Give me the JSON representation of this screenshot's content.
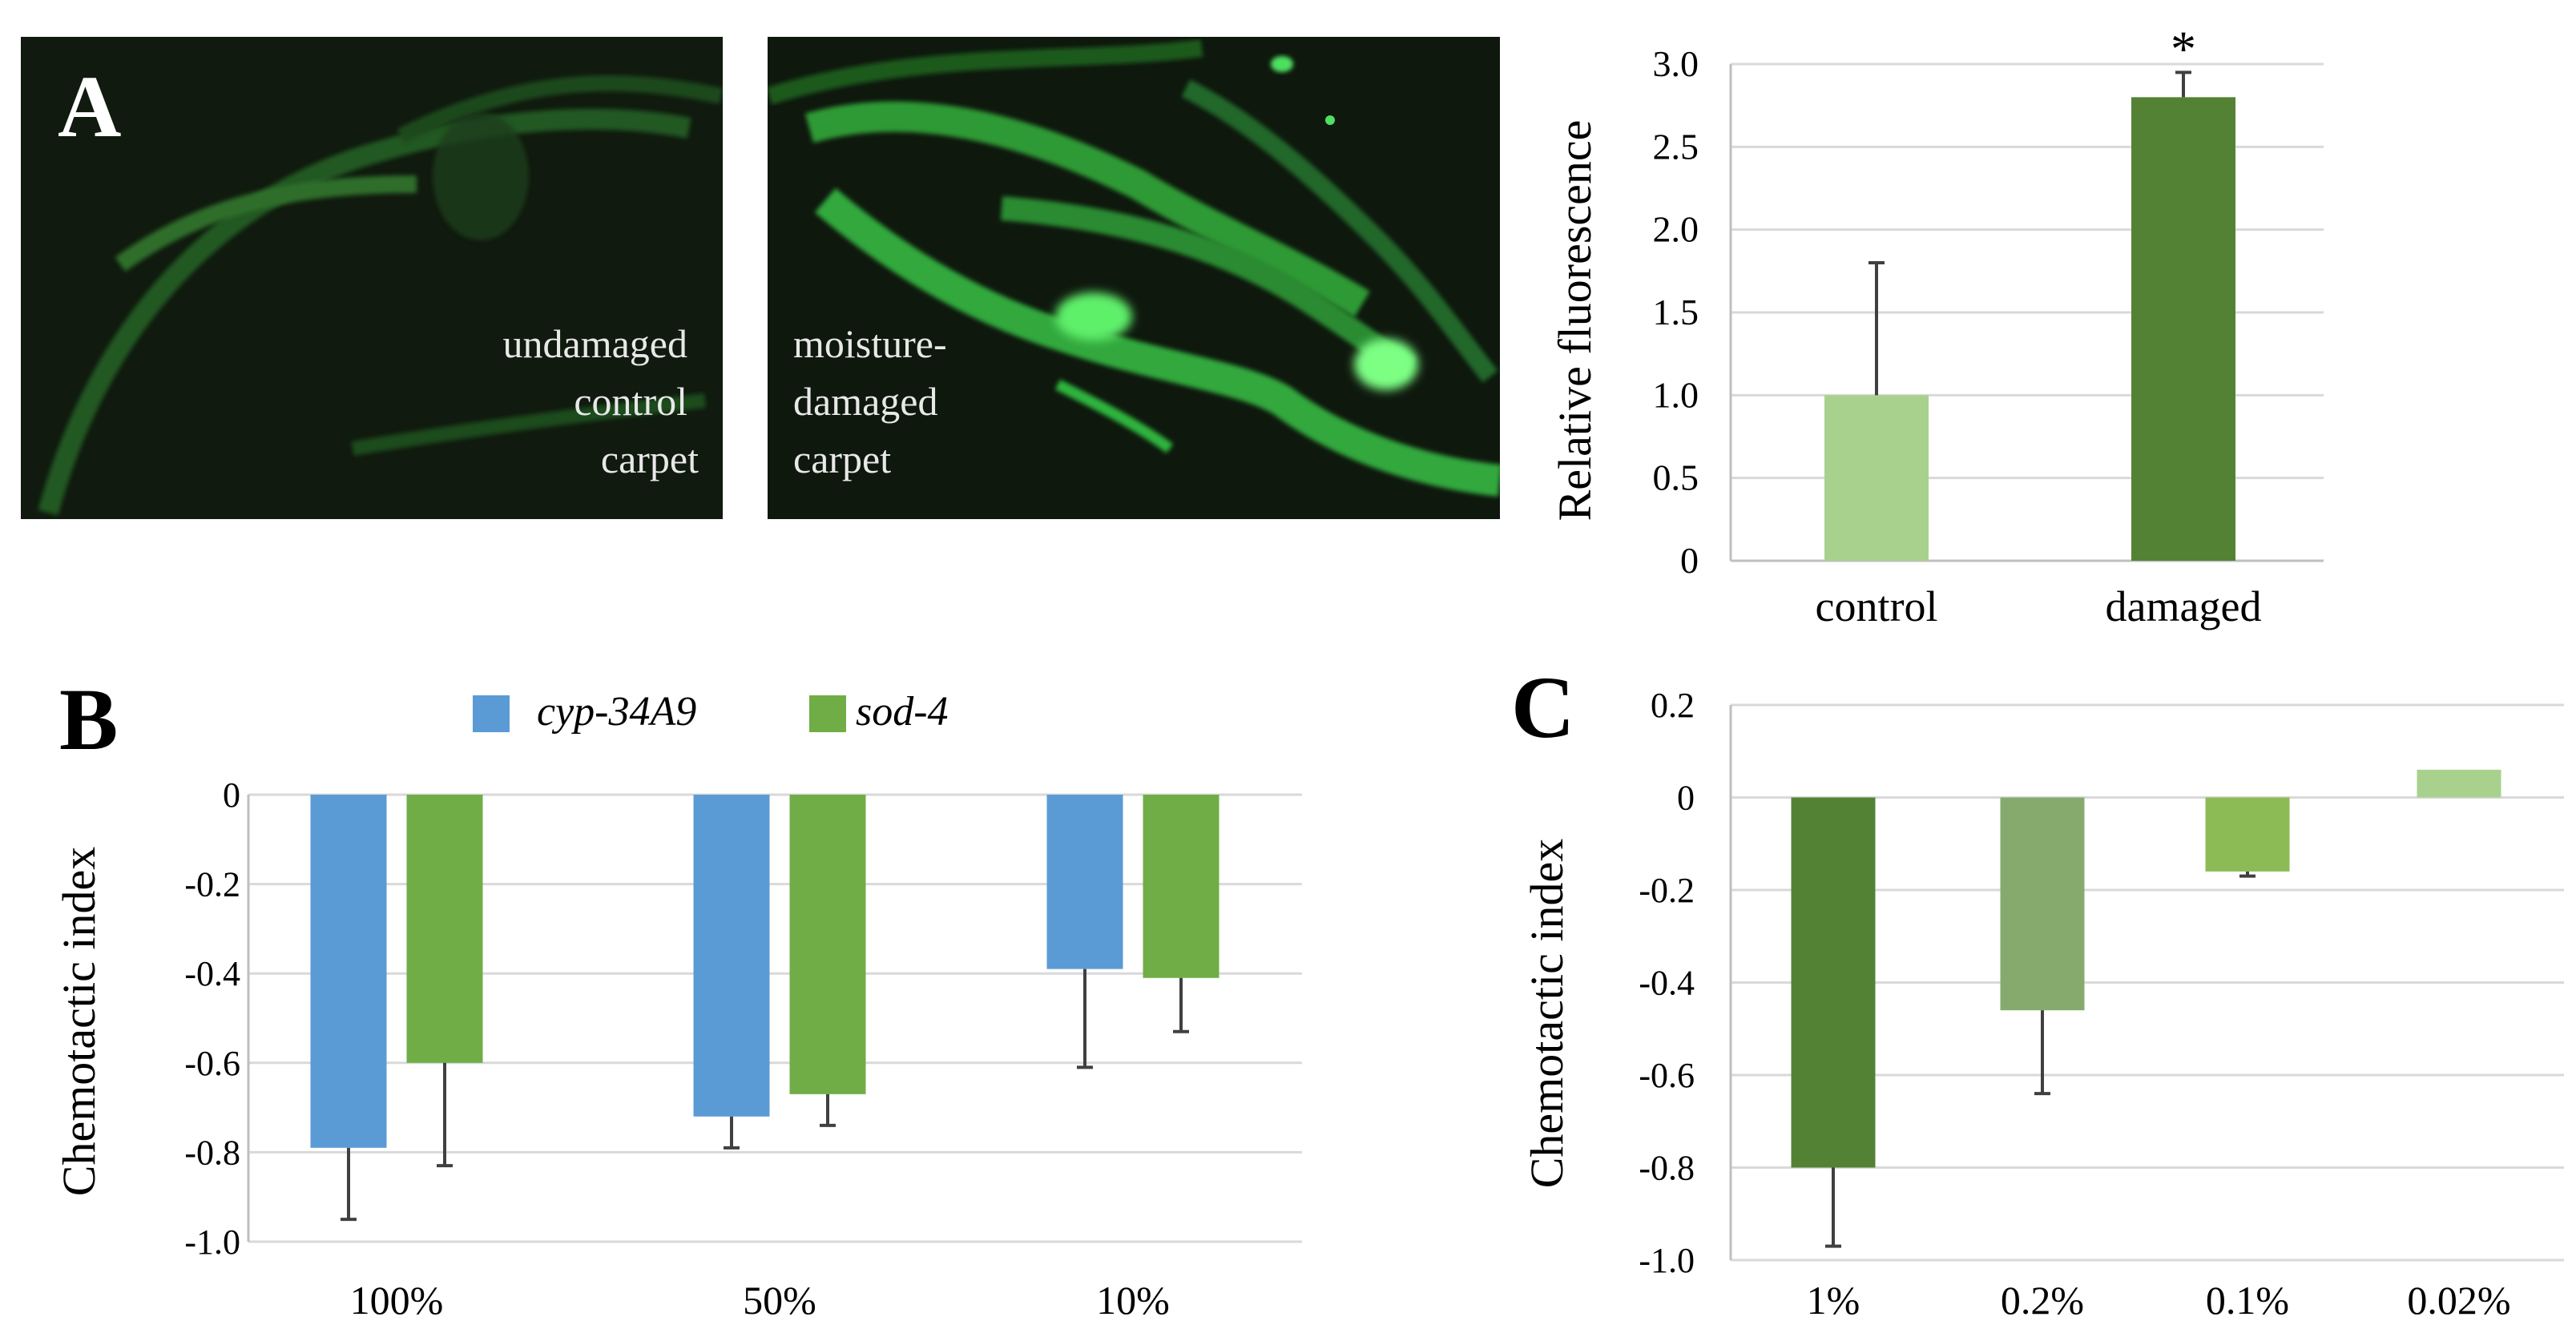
{
  "panels": {
    "A": {
      "label": "A",
      "image_left_caption": [
        "undamaged",
        "control",
        "carpet"
      ],
      "image_right_caption": [
        "moisture-",
        "damaged",
        "carpet"
      ]
    },
    "B": {
      "label": "B"
    },
    "C": {
      "label": "C"
    }
  },
  "colors": {
    "control_bar": "#a9d18e",
    "damaged_bar": "#548235",
    "cyp": "#5b9bd5",
    "sod": "#70ad47",
    "c_bars": [
      "#548235",
      "#86aa6e",
      "#8cbb55",
      "#a9d18e"
    ],
    "grid": "#d9d9d9",
    "error": "#404040",
    "micro_bg": "#0f1a0e",
    "worm_dim": "#2e6a2a",
    "worm_bright": "#37b84a"
  },
  "chart_data": [
    {
      "id": "A-chart",
      "type": "bar",
      "categories": [
        "control",
        "damaged"
      ],
      "values": [
        1.0,
        2.8
      ],
      "error": [
        0.8,
        0.15
      ],
      "annotations": [
        "",
        "*"
      ],
      "ylabel": "Relative fluorescence",
      "ylim": [
        0,
        3.0
      ],
      "yticks": [
        "0",
        "0.5",
        "1.0",
        "1.5",
        "2.0",
        "2.5",
        "3.0"
      ],
      "grid": true
    },
    {
      "id": "B-chart",
      "type": "bar",
      "categories": [
        "100%",
        "50%",
        "10%"
      ],
      "series": [
        {
          "name": "cyp-34A9",
          "values": [
            -0.79,
            -0.72,
            -0.39
          ],
          "error": [
            0.16,
            0.07,
            0.22
          ]
        },
        {
          "name": "sod-4",
          "values": [
            -0.6,
            -0.67,
            -0.41
          ],
          "error": [
            0.23,
            0.07,
            0.12
          ]
        }
      ],
      "ylabel": "Chemotactic index",
      "ylim": [
        -1.0,
        0
      ],
      "yticks": [
        "-1.0",
        "-0.8",
        "-0.6",
        "-0.4",
        "-0.2",
        "0"
      ],
      "legend": "top",
      "grid": true
    },
    {
      "id": "C-chart",
      "type": "bar",
      "categories": [
        "1%",
        "0.2%",
        "0.1%",
        "0.02%"
      ],
      "values": [
        -0.8,
        -0.46,
        -0.16,
        0.06
      ],
      "error": [
        0.17,
        0.18,
        0.01,
        0
      ],
      "ylabel": "Chemotactic index",
      "ylim": [
        -1.0,
        0.2
      ],
      "yticks": [
        "-1.0",
        "-0.8",
        "-0.6",
        "-0.4",
        "-0.2",
        "0",
        "0.2"
      ],
      "grid": true
    }
  ]
}
